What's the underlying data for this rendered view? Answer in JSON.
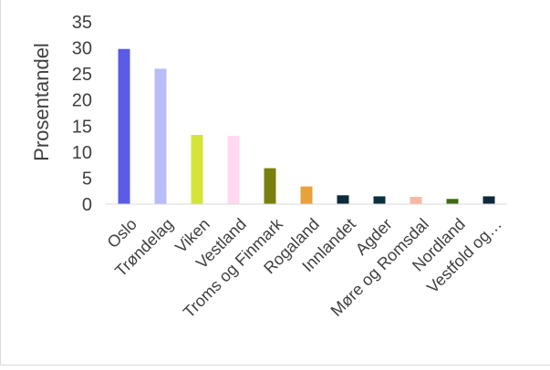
{
  "chart_data": {
    "type": "bar",
    "title": "",
    "xlabel": "",
    "ylabel": "Prosentandel",
    "ylim": [
      0,
      35
    ],
    "yticks": [
      0,
      5,
      10,
      15,
      20,
      25,
      30,
      35
    ],
    "grid": false,
    "legend": "none",
    "categories": [
      "Oslo",
      "Trøndelag",
      "Viken",
      "Vestland",
      "Troms og Finmark",
      "Rogaland",
      "Innlandet",
      "Agder",
      "Møre og Romsdal",
      "Nordland",
      "Vestfold og…"
    ],
    "values": [
      29.8,
      26,
      13.3,
      13.1,
      6.9,
      3.4,
      1.7,
      1.5,
      1.4,
      1.0,
      1.5
    ],
    "colors": [
      "#5b5be6",
      "#b8bcf7",
      "#d4e53a",
      "#ffd9f0",
      "#7a8010",
      "#e6a23c",
      "#0d2a3a",
      "#0d3040",
      "#f9b8a4",
      "#3f6b12",
      "#0d2a3a"
    ]
  }
}
